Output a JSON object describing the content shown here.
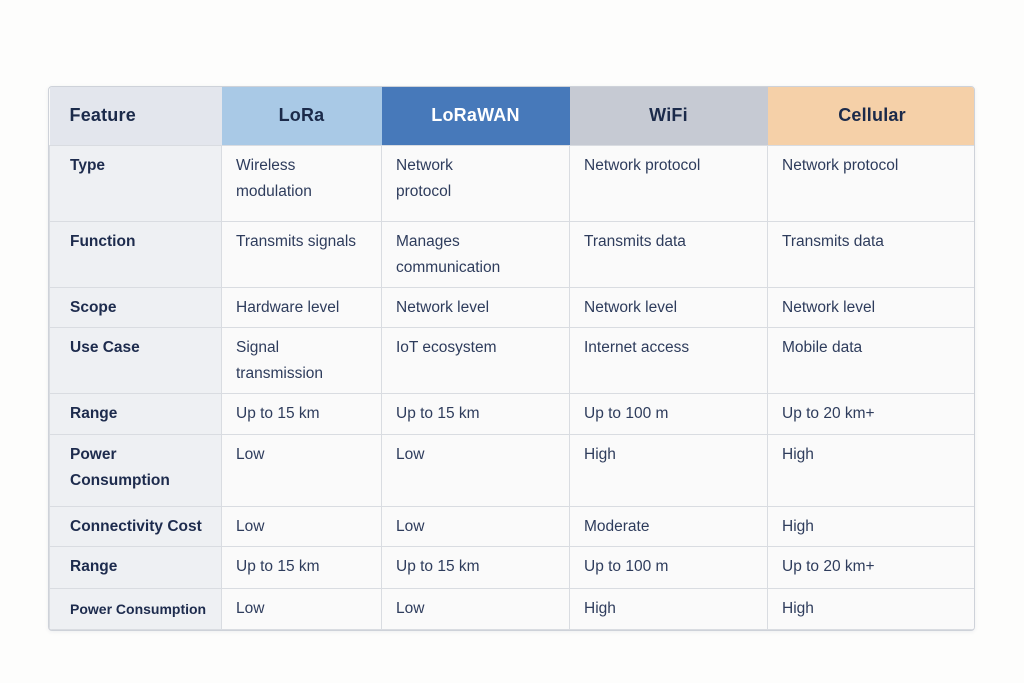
{
  "page": {
    "background": "#fdfdfc"
  },
  "table": {
    "columns": [
      {
        "key": "feature",
        "label": "Feature",
        "header_bg": "#e3e6ed",
        "header_text": "#1b2a4a"
      },
      {
        "key": "lora",
        "label": "LoRa",
        "header_bg": "#a9c9e6",
        "header_text": "#1b2a4a"
      },
      {
        "key": "lorawan",
        "label": "LoRaWAN",
        "header_bg": "#4779ba",
        "header_text": "#ffffff"
      },
      {
        "key": "wifi",
        "label": "WiFi",
        "header_bg": "#c6cad3",
        "header_text": "#1b2a4a"
      },
      {
        "key": "cellular",
        "label": "Cellular",
        "header_bg": "#f5d0a8",
        "header_text": "#1b2a4a"
      }
    ],
    "rows": [
      {
        "feature": "Type",
        "lora": "Wireless modulation",
        "lorawan": "Network protocol",
        "wifi": "Network protocol",
        "cellular": "Network protocol"
      },
      {
        "feature": "Function",
        "lora": "Transmits signals",
        "lorawan": "Manages communication",
        "wifi": "Transmits data",
        "cellular": "Transmits data"
      },
      {
        "feature": "Scope",
        "lora": "Hardware level",
        "lorawan": "Network level",
        "wifi": "Network level",
        "cellular": "Network level"
      },
      {
        "feature": "Use Case",
        "lora": "Signal transmission",
        "lorawan": "IoT ecosystem",
        "wifi": "Internet access",
        "cellular": "Mobile data"
      },
      {
        "feature": "Range",
        "lora": "Up to 15 km",
        "lorawan": "Up to 15 km",
        "wifi": "Up to 100 m",
        "cellular": "Up to 20 km+"
      },
      {
        "feature": "Power Consumption",
        "lora": "Low",
        "lorawan": "Low",
        "wifi": "High",
        "cellular": "High"
      },
      {
        "feature": "Connectivity Cost",
        "lora": "Low",
        "lorawan": "Low",
        "wifi": "Moderate",
        "cellular": "High"
      },
      {
        "feature": "Range",
        "lora": "Up to 15 km",
        "lorawan": "Up to 15 km",
        "wifi": "Up to 100 m",
        "cellular": "Up to 20 km+"
      },
      {
        "feature": "Power Consumption",
        "lora": "Low",
        "lorawan": "Low",
        "wifi": "High",
        "cellular": "High"
      }
    ]
  },
  "chart_data": {
    "type": "table",
    "columns": [
      "Feature",
      "LoRa",
      "LoRaWAN",
      "WiFi",
      "Cellular"
    ],
    "rows": [
      [
        "Type",
        "Wireless modulation",
        "Network protocol",
        "Network protocol",
        "Network protocol"
      ],
      [
        "Function",
        "Transmits signals",
        "Manages communication",
        "Transmits data",
        "Transmits data"
      ],
      [
        "Scope",
        "Hardware level",
        "Network level",
        "Network level",
        "Network level"
      ],
      [
        "Use Case",
        "Signal transmission",
        "IoT ecosystem",
        "Internet access",
        "Mobile data"
      ],
      [
        "Range",
        "Up to 15 km",
        "Up to 15 km",
        "Up to 100 m",
        "Up to 20 km+"
      ],
      [
        "Power Consumption",
        "Low",
        "Low",
        "High",
        "High"
      ],
      [
        "Connectivity Cost",
        "Low",
        "Low",
        "Moderate",
        "High"
      ],
      [
        "Range",
        "Up to 15 km",
        "Up to 15 km",
        "Up to 100 m",
        "Up to 20 km+"
      ],
      [
        "Power Consumption",
        "Low",
        "Low",
        "High",
        "High"
      ]
    ],
    "legend_position": "none",
    "grid": true
  }
}
